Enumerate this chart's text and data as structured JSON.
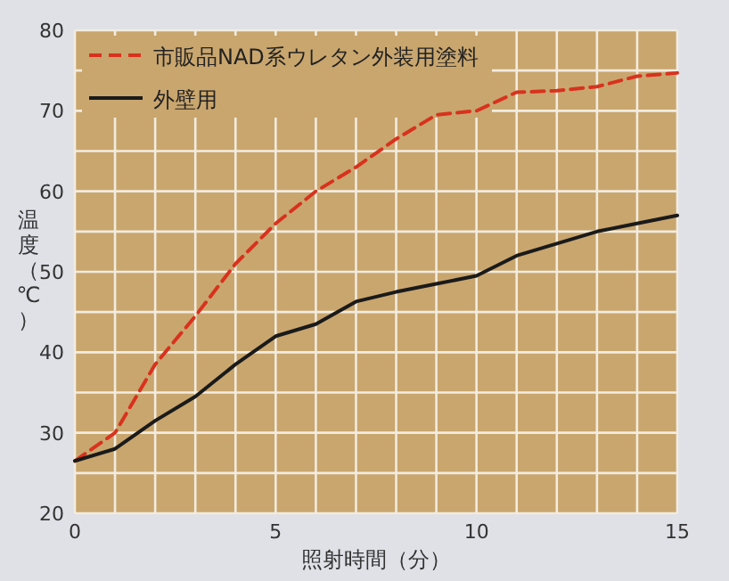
{
  "chart_data": {
    "type": "line",
    "xlabel": "照射時間（分）",
    "ylabel": "温度（℃）",
    "x": [
      0,
      1,
      2,
      3,
      4,
      5,
      6,
      7,
      8,
      9,
      10,
      11,
      12,
      13,
      14,
      15
    ],
    "series": [
      {
        "name": "市販品NAD系ウレタン外装用塗料",
        "color": "#d8321e",
        "line_style": "dashed",
        "values": [
          26.5,
          30,
          38.5,
          44.5,
          51,
          56,
          60,
          63,
          66.5,
          69.5,
          70,
          72.3,
          72.5,
          73,
          74.3,
          74.7
        ]
      },
      {
        "name": "外壁用",
        "color": "#1a1a1a",
        "line_style": "solid",
        "values": [
          26.5,
          28,
          31.5,
          34.5,
          38.5,
          42,
          43.5,
          46.3,
          47.5,
          48.5,
          49.5,
          52,
          53.5,
          55,
          56,
          57
        ]
      }
    ],
    "xlim": [
      0,
      15
    ],
    "ylim": [
      20,
      80
    ],
    "xticks": [
      0,
      {
        "value": 1,
        "label": null
      },
      {
        "value": 2,
        "label": null
      },
      {
        "value": 3,
        "label": null
      },
      {
        "value": 4,
        "label": null
      },
      5,
      {
        "value": 6,
        "label": null
      },
      {
        "value": 7,
        "label": null
      },
      {
        "value": 8,
        "label": null
      },
      {
        "value": 9,
        "label": null
      },
      10,
      {
        "value": 11,
        "label": null
      },
      {
        "value": 12,
        "label": null
      },
      {
        "value": 13,
        "label": null
      },
      {
        "value": 14,
        "label": null
      },
      15
    ],
    "yticks": [
      20,
      {
        "value": 25,
        "label": null
      },
      30,
      {
        "value": 35,
        "label": null
      },
      40,
      {
        "value": 45,
        "label": null
      },
      50,
      {
        "value": 55,
        "label": null
      },
      60,
      {
        "value": 65,
        "label": null
      },
      70,
      {
        "value": 75,
        "label": null
      },
      80
    ],
    "grid": true,
    "legend": "top left",
    "marker": "none"
  }
}
